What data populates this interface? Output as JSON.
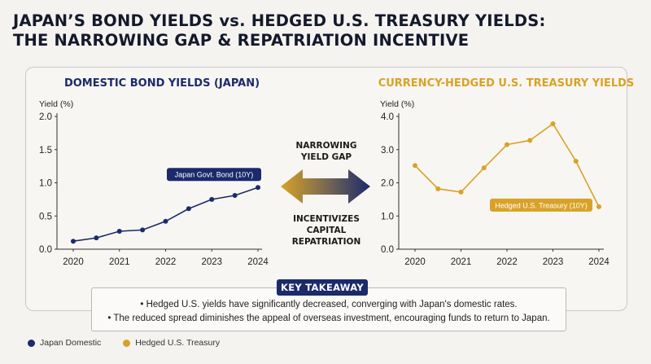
{
  "title_line1": "JAPAN’S BOND YIELDS vs. HEDGED U.S. TREASURY YIELDS:",
  "title_line2": "THE NARROWING GAP & REPATRIATION INCENTIVE",
  "colors": {
    "navy": "#1b2a6b",
    "gold": "#d9a227",
    "axis": "#333333"
  },
  "center": {
    "top_line1": "NARROWING",
    "top_line2": "YIELD GAP",
    "bottom_line1": "INCENTIVIZES",
    "bottom_line2": "CAPITAL",
    "bottom_line3": "REPATRIATION"
  },
  "takeaway": {
    "badge": "KEY TAKEAWAY",
    "bullet1": "• Hedged U.S. yields have significantly decreased, converging with Japan's domestic rates.",
    "bullet2": "• The reduced spread diminishes the appeal of overseas investment, encouraging funds to return to Japan."
  },
  "legend": {
    "item1": "Japan Domestic",
    "item2": "Hedged U.S. Treasury"
  },
  "chart_data": [
    {
      "type": "line",
      "title": "DOMESTIC BOND YIELDS (JAPAN)",
      "ylabel": "Yield (%)",
      "ylim": [
        0,
        2
      ],
      "yticks": [
        "0.0",
        "0.5",
        "1.0",
        "1.5",
        "2.0"
      ],
      "xlim": [
        2020,
        2024
      ],
      "xticks": [
        "2020",
        "2021",
        "2022",
        "2023",
        "2024"
      ],
      "grid": false,
      "series": [
        {
          "name": "Japan Govt. Bond (10Y)",
          "color": "#1b2a6b",
          "x": [
            2020,
            2020.5,
            2021,
            2021.5,
            2022,
            2022.5,
            2023,
            2023.5,
            2024
          ],
          "values": [
            0.12,
            0.17,
            0.27,
            0.29,
            0.42,
            0.61,
            0.75,
            0.81,
            0.93
          ]
        }
      ]
    },
    {
      "type": "line",
      "title": "CURRENCY-HEDGED U.S. TREASURY YIELDS",
      "ylabel": "Yield (%)",
      "ylim": [
        0,
        4
      ],
      "yticks": [
        "0.0",
        "1.0",
        "2.0",
        "3.0",
        "4.0"
      ],
      "xlim": [
        2020,
        2024
      ],
      "xticks": [
        "2020",
        "2021",
        "2022",
        "2023",
        "2024"
      ],
      "grid": false,
      "series": [
        {
          "name": "Hedged U.S. Treasury (10Y)",
          "color": "#d9a227",
          "x": [
            2020,
            2020.5,
            2021,
            2021.5,
            2022,
            2022.5,
            2023,
            2023.5,
            2024
          ],
          "values": [
            2.52,
            1.82,
            1.72,
            2.45,
            3.15,
            3.28,
            3.78,
            2.65,
            1.28
          ]
        }
      ]
    }
  ]
}
